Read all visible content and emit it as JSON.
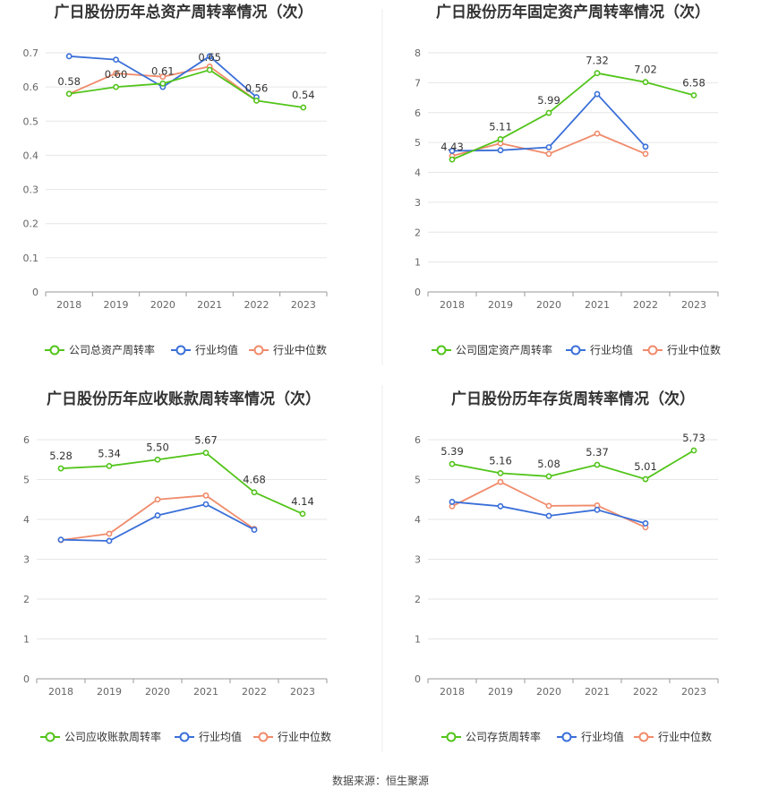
{
  "colors": {
    "company": "#52c41a",
    "industry_avg": "#3a6fd8",
    "industry_median": "#f08b6b",
    "grid": "#e6e6e6",
    "axis": "#999999"
  },
  "footer": {
    "source": "数据来源：恒生聚源"
  },
  "chart_data": [
    {
      "type": "line",
      "title": "广日股份历年总资产周转率情况（次）",
      "categories": [
        "2018",
        "2019",
        "2020",
        "2021",
        "2022",
        "2023"
      ],
      "ylim": [
        0,
        0.7
      ],
      "yticks": [
        "0",
        "0.1",
        "0.2",
        "0.3",
        "0.4",
        "0.5",
        "0.6",
        "0.7"
      ],
      "series": [
        {
          "name": "公司总资产周转率",
          "color_key": "company",
          "values": [
            0.58,
            0.6,
            0.61,
            0.65,
            0.56,
            0.54
          ],
          "labels": [
            "0.58",
            "0.60",
            "0.61",
            "0.65",
            "0.56",
            "0.54"
          ]
        },
        {
          "name": "行业均值",
          "color_key": "industry_avg",
          "values": [
            0.69,
            0.68,
            0.6,
            0.69,
            0.57,
            null
          ]
        },
        {
          "name": "行业中位数",
          "color_key": "industry_median",
          "values": [
            0.58,
            0.64,
            0.63,
            0.66,
            0.56,
            null
          ]
        }
      ],
      "grid": true,
      "legend": "bottom"
    },
    {
      "type": "line",
      "title": "广日股份历年固定资产周转率情况（次）",
      "categories": [
        "2018",
        "2019",
        "2020",
        "2021",
        "2022",
        "2023"
      ],
      "ylim": [
        0,
        8
      ],
      "yticks": [
        "0",
        "1",
        "2",
        "3",
        "4",
        "5",
        "6",
        "7",
        "8"
      ],
      "series": [
        {
          "name": "公司固定资产周转率",
          "color_key": "company",
          "values": [
            4.43,
            5.11,
            5.99,
            7.32,
            7.02,
            6.58
          ],
          "labels": [
            "4.43",
            "5.11",
            "5.99",
            "7.32",
            "7.02",
            "6.58"
          ]
        },
        {
          "name": "行业均值",
          "color_key": "industry_avg",
          "values": [
            4.72,
            4.74,
            4.84,
            6.62,
            4.86,
            null
          ]
        },
        {
          "name": "行业中位数",
          "color_key": "industry_median",
          "values": [
            4.55,
            4.97,
            4.62,
            5.3,
            4.62,
            null
          ]
        }
      ],
      "grid": true,
      "legend": "bottom"
    },
    {
      "type": "line",
      "title": "广日股份历年应收账款周转率情况（次）",
      "categories": [
        "2018",
        "2019",
        "2020",
        "2021",
        "2022",
        "2023"
      ],
      "ylim": [
        0,
        6
      ],
      "yticks": [
        "0",
        "1",
        "2",
        "3",
        "4",
        "5",
        "6"
      ],
      "series": [
        {
          "name": "公司应收账款周转率",
          "color_key": "company",
          "values": [
            5.28,
            5.34,
            5.5,
            5.67,
            4.68,
            4.14
          ],
          "labels": [
            "5.28",
            "5.34",
            "5.50",
            "5.67",
            "4.68",
            "4.14"
          ]
        },
        {
          "name": "行业均值",
          "color_key": "industry_avg",
          "values": [
            3.49,
            3.46,
            4.1,
            4.38,
            3.74,
            null
          ]
        },
        {
          "name": "行业中位数",
          "color_key": "industry_median",
          "values": [
            3.48,
            3.64,
            4.5,
            4.6,
            3.76,
            null
          ]
        }
      ],
      "grid": true,
      "legend": "bottom"
    },
    {
      "type": "line",
      "title": "广日股份历年存货周转率情况（次）",
      "categories": [
        "2018",
        "2019",
        "2020",
        "2021",
        "2022",
        "2023"
      ],
      "ylim": [
        0,
        6
      ],
      "yticks": [
        "0",
        "1",
        "2",
        "3",
        "4",
        "5",
        "6"
      ],
      "series": [
        {
          "name": "公司存货周转率",
          "color_key": "company",
          "values": [
            5.39,
            5.16,
            5.08,
            5.37,
            5.01,
            5.73
          ],
          "labels": [
            "5.39",
            "5.16",
            "5.08",
            "5.37",
            "5.01",
            "5.73"
          ]
        },
        {
          "name": "行业均值",
          "color_key": "industry_avg",
          "values": [
            4.44,
            4.33,
            4.09,
            4.24,
            3.9,
            null
          ]
        },
        {
          "name": "行业中位数",
          "color_key": "industry_median",
          "values": [
            4.33,
            4.94,
            4.34,
            4.35,
            3.8,
            null
          ]
        }
      ],
      "grid": true,
      "legend": "bottom"
    }
  ]
}
